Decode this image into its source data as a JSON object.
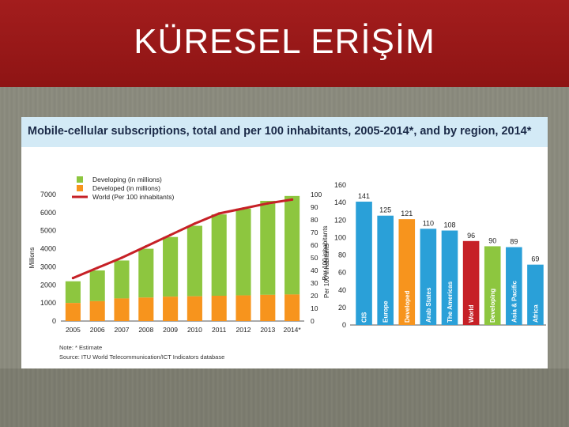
{
  "slide": {
    "title": "KÜRESEL ERİŞİM"
  },
  "figure": {
    "title": "Mobile-cellular subscriptions, total and per 100 inhabitants, 2005-2014*, and by region, 2014*",
    "note": "Note: * Estimate",
    "source": "Source: ITU World Telecommunication/ICT Indicators database"
  },
  "colors": {
    "developing": "#8dc63f",
    "developed": "#f7941d",
    "world": "#c62026",
    "region": "#2aa0d8",
    "title_band": "#a31d1d"
  },
  "chart_data": [
    {
      "type": "bar",
      "categories": [
        "2005",
        "2006",
        "2007",
        "2008",
        "2009",
        "2010",
        "2011",
        "2012",
        "2013",
        "2014*"
      ],
      "series": [
        {
          "name": "Developed (in millions)",
          "values": [
            1000,
            1100,
            1250,
            1300,
            1350,
            1370,
            1400,
            1420,
            1450,
            1470
          ]
        },
        {
          "name": "Developing (in millions)",
          "values": [
            1200,
            1700,
            2100,
            2700,
            3300,
            3900,
            4500,
            4800,
            5200,
            5450
          ]
        },
        {
          "name": "World (Per 100 inhabitants)",
          "type": "line",
          "axis": "right",
          "values": [
            34,
            42,
            50,
            59,
            68,
            77,
            85,
            89,
            93,
            96
          ]
        }
      ],
      "ylabel": "Millions",
      "ylim": [
        0,
        7000
      ],
      "yticks": [
        "0",
        "1000",
        "2000",
        "3000",
        "4000",
        "5000",
        "6000",
        "7000"
      ],
      "y2label": "Per 100 inhabitants",
      "y2lim": [
        0,
        100
      ],
      "y2ticks": [
        "0",
        "10",
        "20",
        "30",
        "40",
        "50",
        "60",
        "70",
        "80",
        "90",
        "100"
      ],
      "legend": "top-left"
    },
    {
      "type": "bar",
      "ylabel": "Per 100 inhabitants",
      "ylim": [
        0,
        160
      ],
      "yticks": [
        "0",
        "20",
        "40",
        "60",
        "80",
        "100",
        "120",
        "140",
        "160"
      ],
      "categories": [
        "CIS",
        "Europe",
        "Developed",
        "Arab States",
        "The Americas",
        "World",
        "Developing",
        "Asia & Pacific",
        "Africa"
      ],
      "values": [
        141,
        125,
        121,
        110,
        108,
        96,
        90,
        89,
        69
      ],
      "labels": [
        "141",
        "125",
        "121",
        "110",
        "108",
        "96",
        "90",
        "89",
        "69"
      ],
      "bar_colors": [
        "#2aa0d8",
        "#2aa0d8",
        "#f7941d",
        "#2aa0d8",
        "#2aa0d8",
        "#c62026",
        "#8dc63f",
        "#2aa0d8",
        "#2aa0d8"
      ]
    }
  ]
}
